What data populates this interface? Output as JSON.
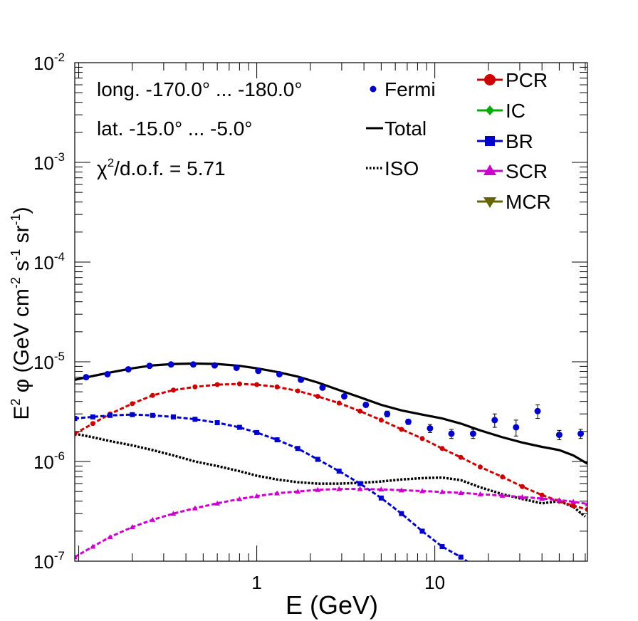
{
  "chart_data": {
    "type": "line",
    "title": "",
    "xlabel": "E (GeV)",
    "ylabel": {
      "prefix": "E",
      "sup1": "2",
      "phi": " φ (GeV cm",
      "sup2": "-2",
      "mid": " s",
      "sup3": "-1",
      "sr": " sr",
      "sup4": "-1",
      "close": ")"
    },
    "xscale": "log",
    "yscale": "log",
    "xlim": [
      0.095,
      72
    ],
    "ylim": [
      1e-07,
      0.01
    ],
    "x_ticks": [
      {
        "value": 1,
        "label": "1"
      },
      {
        "value": 10,
        "label": "10"
      }
    ],
    "y_ticks": [
      {
        "value": 1e-07,
        "base": "10",
        "exp": "-7"
      },
      {
        "value": 1e-06,
        "base": "10",
        "exp": "-6"
      },
      {
        "value": 1e-05,
        "base": "10",
        "exp": "-5"
      },
      {
        "value": 0.0001,
        "base": "10",
        "exp": "-4"
      },
      {
        "value": 0.001,
        "base": "10",
        "exp": "-3"
      },
      {
        "value": 0.01,
        "base": "10",
        "exp": "-2"
      }
    ],
    "annotations": [
      {
        "text": "long. -170.0° ... -180.0°"
      },
      {
        "text": "lat. -15.0° ... -5.0°"
      },
      {
        "chi": "χ",
        "sup": "2",
        "rest": "/d.o.f. = 5.71"
      }
    ],
    "legend_left": [
      {
        "label": "Fermi",
        "marker": "dot",
        "color": "#0000cc"
      },
      {
        "label": "Total",
        "marker": "line",
        "color": "#000000"
      },
      {
        "label": "ISO",
        "marker": "dotted",
        "color": "#000000"
      }
    ],
    "legend_right": [
      {
        "label": "PCR",
        "marker": "circle",
        "color": "#cc0000"
      },
      {
        "label": "IC",
        "marker": "diamond",
        "color": "#00aa00"
      },
      {
        "label": "BR",
        "marker": "square",
        "color": "#0000cc"
      },
      {
        "label": "SCR",
        "marker": "triangle-up",
        "color": "#cc00cc"
      },
      {
        "label": "MCR",
        "marker": "triangle-down",
        "color": "#666600"
      }
    ],
    "fermi": {
      "x": [
        0.11,
        0.145,
        0.19,
        0.25,
        0.33,
        0.44,
        0.58,
        0.77,
        1.02,
        1.34,
        1.77,
        2.34,
        3.1,
        4.1,
        5.4,
        7.1,
        9.4,
        12.4,
        16.4,
        21.7,
        28.6,
        37.8,
        50,
        66
      ],
      "y": [
        7e-06,
        7.5e-06,
        8.4e-06,
        9.1e-06,
        9.4e-06,
        9.4e-06,
        9.2e-06,
        8.7e-06,
        8.1e-06,
        7.5e-06,
        6.6e-06,
        5.5e-06,
        4.5e-06,
        3.7e-06,
        3e-06,
        2.5e-06,
        2.15e-06,
        1.9e-06,
        1.9e-06,
        2.6e-06,
        2.2e-06,
        3.2e-06,
        1.85e-06,
        1.9e-06
      ],
      "yerr": [
        3e-07,
        3e-07,
        3e-07,
        3e-07,
        3e-07,
        3e-07,
        3e-07,
        3e-07,
        3e-07,
        3e-07,
        3e-07,
        2.5e-07,
        2e-07,
        2e-07,
        2e-07,
        1.5e-07,
        2e-07,
        2e-07,
        2e-07,
        4e-07,
        4e-07,
        5e-07,
        2e-07,
        2e-07
      ]
    },
    "series": [
      {
        "name": "Total",
        "style": "solid",
        "color": "#000000",
        "width": 3.2,
        "x": [
          0.095,
          0.12,
          0.15,
          0.2,
          0.26,
          0.34,
          0.45,
          0.6,
          0.8,
          1.0,
          1.3,
          1.7,
          2.2,
          2.9,
          3.8,
          5,
          6.5,
          8.5,
          11,
          14,
          18,
          24,
          31,
          40,
          50,
          60,
          72
        ],
        "y": [
          6.6e-06,
          7.2e-06,
          7.8e-06,
          8.6e-06,
          9.2e-06,
          9.5e-06,
          9.6e-06,
          9.5e-06,
          9.1e-06,
          8.6e-06,
          7.9e-06,
          7.1e-06,
          6.2e-06,
          5.2e-06,
          4.4e-06,
          3.7e-06,
          3.25e-06,
          2.95e-06,
          2.7e-06,
          2.4e-06,
          2.05e-06,
          1.75e-06,
          1.55e-06,
          1.4e-06,
          1.3e-06,
          1.15e-06,
          9.5e-07
        ]
      },
      {
        "name": "ISO",
        "style": "dotted",
        "color": "#000000",
        "width": 3.5,
        "x": [
          0.095,
          0.12,
          0.15,
          0.2,
          0.26,
          0.34,
          0.45,
          0.6,
          0.8,
          1.0,
          1.3,
          1.7,
          2.2,
          2.9,
          3.8,
          5,
          6.5,
          8.5,
          11,
          14,
          18,
          24,
          31,
          40,
          50,
          60,
          70
        ],
        "y": [
          1.9e-06,
          1.75e-06,
          1.6e-06,
          1.45e-06,
          1.3e-06,
          1.15e-06,
          1e-06,
          9e-07,
          8e-07,
          7.2e-07,
          6.6e-07,
          6.2e-07,
          6e-07,
          6e-07,
          6.1e-07,
          6.3e-07,
          6.6e-07,
          6.8e-07,
          6.9e-07,
          6.5e-07,
          5.5e-07,
          4.7e-07,
          4.2e-07,
          3.8e-07,
          4e-07,
          3.5e-07,
          2.8e-07
        ]
      },
      {
        "name": "PCR",
        "style": "dashed",
        "color": "#cc0000",
        "width": 3,
        "x": [
          0.095,
          0.12,
          0.15,
          0.2,
          0.26,
          0.34,
          0.45,
          0.6,
          0.8,
          1.0,
          1.3,
          1.7,
          2.2,
          2.9,
          3.8,
          5,
          6.5,
          8.5,
          11,
          14,
          18,
          24,
          31,
          40,
          50,
          60,
          72
        ],
        "y": [
          1.9e-06,
          2.4e-06,
          3e-06,
          3.8e-06,
          4.6e-06,
          5.2e-06,
          5.6e-06,
          5.9e-06,
          6e-06,
          5.9e-06,
          5.6e-06,
          5.1e-06,
          4.5e-06,
          3.85e-06,
          3.2e-06,
          2.6e-06,
          2.1e-06,
          1.7e-06,
          1.35e-06,
          1.1e-06,
          8.8e-07,
          7e-07,
          5.6e-07,
          4.6e-07,
          4e-07,
          3.6e-07,
          3.3e-07
        ]
      },
      {
        "name": "BR",
        "style": "dashed",
        "color": "#0000cc",
        "width": 3,
        "x": [
          0.095,
          0.12,
          0.15,
          0.2,
          0.26,
          0.34,
          0.45,
          0.6,
          0.8,
          1.0,
          1.3,
          1.7,
          2.2,
          2.9,
          3.8,
          5,
          6.5,
          8.5,
          11,
          14,
          16.5
        ],
        "y": [
          2.7e-06,
          2.8e-06,
          2.9e-06,
          2.95e-06,
          2.9e-06,
          2.8e-06,
          2.65e-06,
          2.45e-06,
          2.2e-06,
          1.95e-06,
          1.65e-06,
          1.35e-06,
          1.05e-06,
          8e-07,
          6e-07,
          4.3e-07,
          3e-07,
          2e-07,
          1.4e-07,
          1.1e-07,
          9e-08
        ]
      },
      {
        "name": "SCR",
        "style": "dashed",
        "color": "#cc00cc",
        "width": 3,
        "x": [
          0.095,
          0.12,
          0.15,
          0.2,
          0.26,
          0.34,
          0.45,
          0.6,
          0.8,
          1.0,
          1.3,
          1.7,
          2.2,
          2.9,
          3.8,
          5,
          6.5,
          8.5,
          11,
          14,
          18,
          24,
          31,
          40,
          50,
          60,
          72
        ],
        "y": [
          1.1e-07,
          1.4e-07,
          1.75e-07,
          2.2e-07,
          2.6e-07,
          3e-07,
          3.4e-07,
          3.8e-07,
          4.2e-07,
          4.5e-07,
          4.8e-07,
          5e-07,
          5.2e-07,
          5.3e-07,
          5.3e-07,
          5.25e-07,
          5.15e-07,
          5.05e-07,
          4.95e-07,
          4.85e-07,
          4.7e-07,
          4.55e-07,
          4.4e-07,
          4.25e-07,
          4.1e-07,
          3.95e-07,
          3.75e-07
        ]
      }
    ]
  }
}
